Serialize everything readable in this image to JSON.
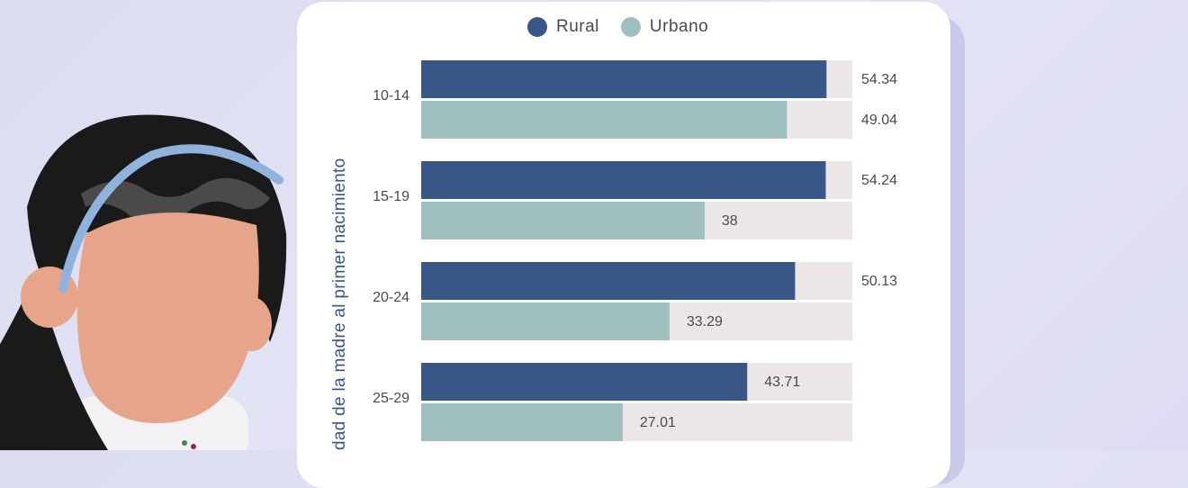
{
  "legend": {
    "rural": {
      "label": "Rural",
      "color": "#385686"
    },
    "urbano": {
      "label": "Urbano",
      "color": "#9fbfbf"
    }
  },
  "chart_data": {
    "type": "bar",
    "orientation": "horizontal",
    "ylabel": "dad de la madre al primer nacimiento",
    "categories": [
      "10-14",
      "15-19",
      "20-24",
      "25-29"
    ],
    "series": [
      {
        "name": "Rural",
        "color": "#385686",
        "values": [
          54.34,
          54.24,
          50.13,
          43.71
        ]
      },
      {
        "name": "Urbano",
        "color": "#9fbfbf",
        "values": [
          49.04,
          38,
          33.29,
          27.01
        ]
      }
    ],
    "value_labels": {
      "Rural": [
        "54.34",
        "54.24",
        "50.13",
        "43.71"
      ],
      "Urbano": [
        "49.04",
        "38",
        "33.29",
        "27.01"
      ]
    },
    "track_color": "#ece6e8",
    "grid": false,
    "legend_position": "top"
  }
}
